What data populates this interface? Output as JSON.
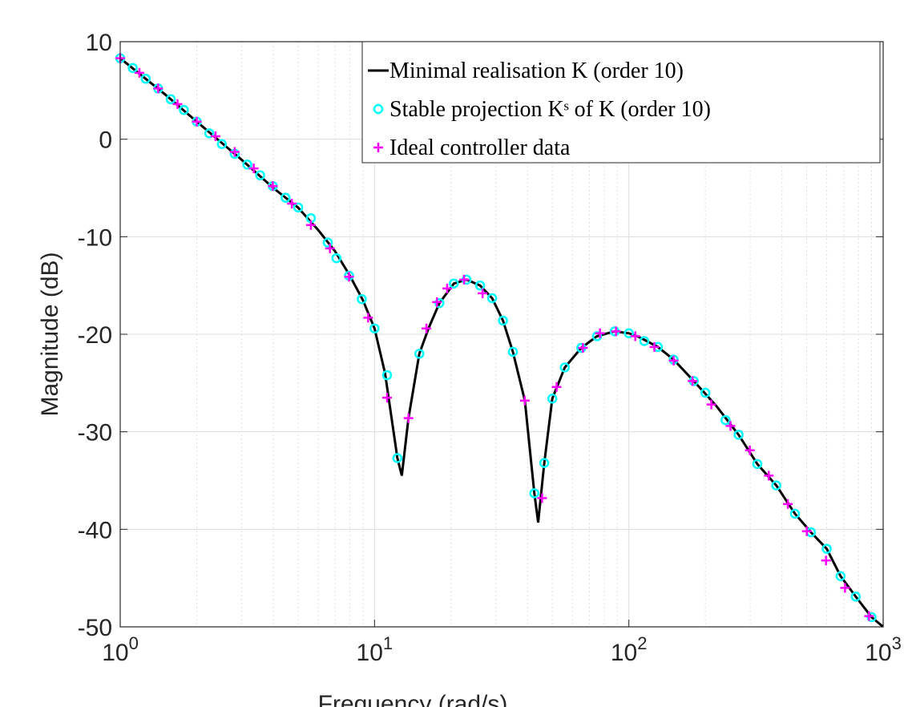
{
  "chart_data": {
    "type": "line",
    "xlabel": "Frequency (rad/s)",
    "ylabel": "Magnitude (dB)",
    "xscale": "log",
    "xlim": [
      1,
      1000
    ],
    "ylim": [
      -50,
      10
    ],
    "xticks": [
      {
        "value": 1,
        "label": "10^0"
      },
      {
        "value": 10,
        "label": "10^1"
      },
      {
        "value": 100,
        "label": "10^2"
      },
      {
        "value": 1000,
        "label": "10^3"
      }
    ],
    "yticks": [
      -50,
      -40,
      -30,
      -20,
      -10,
      0,
      10
    ],
    "grid": true,
    "minor_grid": true,
    "legend": "upper right",
    "series": [
      {
        "name": "Minimal realisation K (order 10)",
        "color": "#000000",
        "style": "line",
        "x": [
          1,
          1.5,
          2,
          3,
          4,
          5,
          6,
          7,
          8,
          9,
          10,
          11,
          12.3,
          12.8,
          13.6,
          15,
          16.3,
          18,
          20.5,
          23,
          26,
          29,
          32,
          35,
          39,
          42.5,
          44,
          46.5,
          50,
          56,
          65,
          75,
          88,
          100,
          110,
          130,
          150,
          180,
          220,
          270,
          320,
          380,
          450,
          520,
          600,
          680,
          780,
          900,
          1000
        ],
        "values": [
          8.3,
          4.6,
          1.8,
          -2.1,
          -5.0,
          -7.0,
          -9.3,
          -11.5,
          -14.0,
          -16.5,
          -19.4,
          -24.0,
          -32.7,
          -34.5,
          -28.6,
          -22.0,
          -19.4,
          -16.8,
          -14.8,
          -14.4,
          -15.0,
          -16.3,
          -18.6,
          -21.8,
          -26.8,
          -36.3,
          -39.3,
          -33.2,
          -26.6,
          -23.4,
          -21.4,
          -20.2,
          -19.7,
          -19.9,
          -20.3,
          -21.3,
          -22.6,
          -24.8,
          -27.3,
          -30.3,
          -33.3,
          -35.5,
          -38.4,
          -40.3,
          -42.0,
          -44.8,
          -46.9,
          -49.0,
          -50.0
        ]
      },
      {
        "name": "Stable projection Kˢ of K (order 10)",
        "color": "#00ffff",
        "style": "circle",
        "x": [
          1,
          1.12,
          1.26,
          1.41,
          1.58,
          1.78,
          2.0,
          2.24,
          2.51,
          2.82,
          3.16,
          3.55,
          3.98,
          4.47,
          5.01,
          5.62,
          6.55,
          7.08,
          7.94,
          8.91,
          10,
          11.2,
          12.3,
          15,
          18,
          20.5,
          23,
          26,
          29,
          32,
          35,
          42.5,
          46.5,
          50,
          56,
          65,
          75,
          88,
          100,
          115,
          130,
          150,
          180,
          200,
          240,
          270,
          320,
          380,
          450,
          520,
          600,
          680,
          780,
          900
        ],
        "values": [
          8.3,
          7.3,
          6.2,
          5.2,
          4.1,
          3.0,
          1.8,
          0.6,
          -0.5,
          -1.5,
          -2.6,
          -3.7,
          -4.8,
          -6.0,
          -7.0,
          -8.1,
          -10.6,
          -12.2,
          -14.0,
          -16.4,
          -19.4,
          -24.2,
          -32.7,
          -22.0,
          -16.8,
          -14.8,
          -14.4,
          -15.0,
          -16.3,
          -18.6,
          -21.8,
          -36.3,
          -33.2,
          -26.6,
          -23.4,
          -21.4,
          -20.2,
          -19.7,
          -19.9,
          -20.7,
          -21.3,
          -22.6,
          -24.8,
          -26.0,
          -28.8,
          -30.3,
          -33.3,
          -35.5,
          -38.4,
          -40.3,
          -42.0,
          -44.8,
          -46.9,
          -49.0
        ]
      },
      {
        "name": "Ideal controller data",
        "color": "#ff00ff",
        "style": "plus",
        "x": [
          1,
          1.19,
          1.41,
          1.68,
          2.0,
          2.37,
          2.82,
          3.35,
          3.98,
          4.73,
          5.62,
          6.68,
          7.94,
          9.44,
          11.2,
          13.6,
          16.0,
          17.6,
          19.3,
          22.5,
          26.6,
          39,
          45.6,
          52,
          66,
          77,
          89,
          106,
          126,
          150,
          178,
          211,
          251,
          299,
          355,
          422,
          501,
          596,
          708,
          880
        ],
        "values": [
          8.3,
          6.8,
          5.2,
          3.6,
          1.8,
          0.3,
          -1.3,
          -3.0,
          -4.8,
          -6.6,
          -8.8,
          -11.2,
          -14.1,
          -18.3,
          -26.5,
          -28.6,
          -19.4,
          -16.7,
          -15.3,
          -14.4,
          -15.8,
          -26.8,
          -36.8,
          -25.4,
          -21.4,
          -19.9,
          -19.7,
          -20.2,
          -21.3,
          -22.7,
          -24.8,
          -27.2,
          -29.4,
          -31.9,
          -34.5,
          -37.4,
          -40.2,
          -43.2,
          -46.0,
          -48.9
        ]
      }
    ]
  }
}
